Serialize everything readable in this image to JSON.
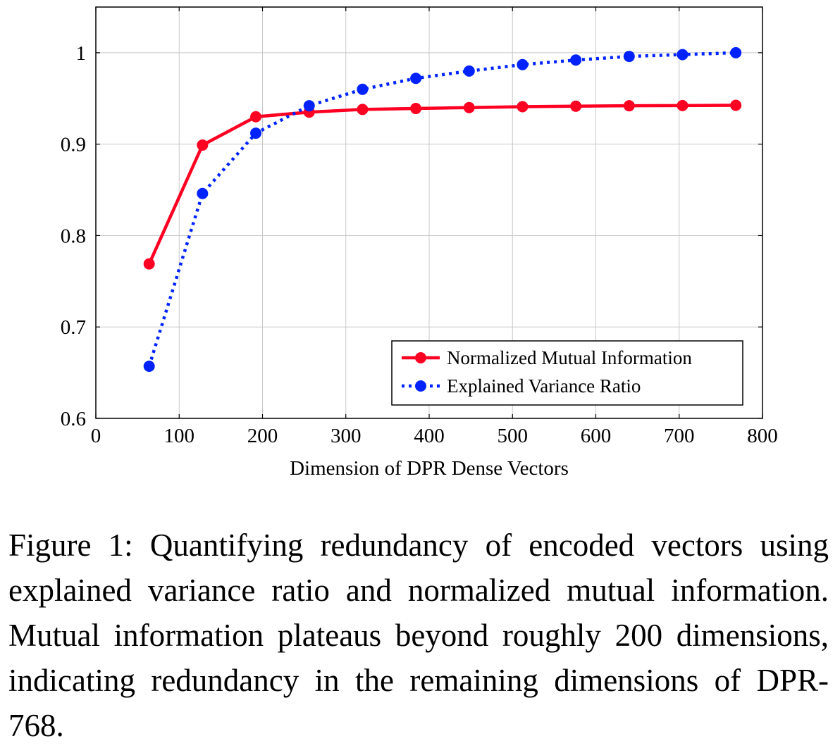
{
  "chart_data": {
    "type": "line",
    "title": "",
    "xlabel": "Dimension of DPR Dense Vectors",
    "ylabel": "",
    "xlim": [
      0,
      800
    ],
    "ylim": [
      0.6,
      1.05
    ],
    "xticks": [
      0,
      100,
      200,
      300,
      400,
      500,
      600,
      700,
      800
    ],
    "xtick_labels": [
      "0",
      "100",
      "200",
      "300",
      "400",
      "500",
      "600",
      "700",
      "800"
    ],
    "yticks": [
      0.6,
      0.7,
      0.8,
      0.9,
      1.0
    ],
    "ytick_labels": [
      "0.6",
      "0.7",
      "0.8",
      "0.9",
      "1"
    ],
    "grid": true,
    "legend_position": "bottom-right",
    "x": [
      64,
      128,
      192,
      256,
      320,
      384,
      448,
      512,
      576,
      640,
      704,
      768
    ],
    "series": [
      {
        "name": "Normalized Mutual Information",
        "color": "#ff0022",
        "style": "solid",
        "values": [
          0.769,
          0.899,
          0.93,
          0.935,
          0.938,
          0.939,
          0.94,
          0.941,
          0.9415,
          0.942,
          0.9422,
          0.9425
        ]
      },
      {
        "name": "Explained Variance Ratio",
        "color": "#0022ff",
        "style": "dotted",
        "values": [
          0.657,
          0.846,
          0.912,
          0.942,
          0.96,
          0.972,
          0.98,
          0.987,
          0.992,
          0.996,
          0.998,
          1.0
        ]
      }
    ]
  },
  "caption": "Figure 1: Quantifying redundancy of encoded vectors using explained variance ratio and normalized mutual information. Mutual information plateaus beyond roughly 200 dimensions, indicating redundancy in the remaining dimensions of DPR-768."
}
